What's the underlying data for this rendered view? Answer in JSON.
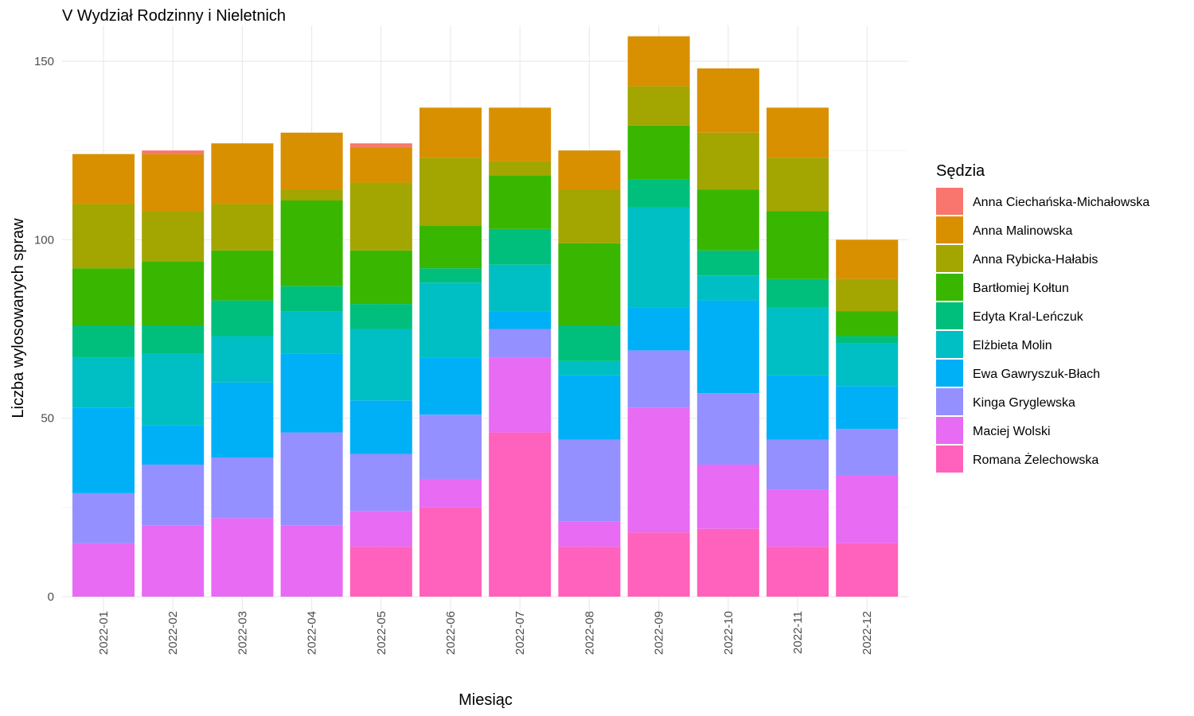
{
  "chart_data": {
    "type": "bar",
    "stacked": true,
    "title": "V Wydział Rodzinny i Nieletnich",
    "xlabel": "Miesiąc",
    "ylabel": "Liczba wylosowanych spraw",
    "ylim": [
      0,
      160
    ],
    "yticks": [
      0,
      50,
      100,
      150
    ],
    "grid": true,
    "legend_title": "Sędzia",
    "legend_position": "right",
    "categories": [
      "2022-01",
      "2022-02",
      "2022-03",
      "2022-04",
      "2022-05",
      "2022-06",
      "2022-07",
      "2022-08",
      "2022-09",
      "2022-10",
      "2022-11",
      "2022-12"
    ],
    "series": [
      {
        "name": "Anna Ciechańska-Michałowska",
        "color": "#F8766D",
        "values": [
          0,
          1,
          0,
          0,
          1,
          0,
          0,
          0,
          0,
          0,
          0,
          0
        ]
      },
      {
        "name": "Anna Malinowska",
        "color": "#D89000",
        "values": [
          14,
          16,
          17,
          16,
          10,
          14,
          15,
          11,
          14,
          18,
          14,
          11
        ]
      },
      {
        "name": "Anna Rybicka-Hałabis",
        "color": "#A3A500",
        "values": [
          18,
          14,
          13,
          3,
          19,
          19,
          4,
          15,
          11,
          16,
          15,
          9
        ]
      },
      {
        "name": "Bartłomiej Kołtun",
        "color": "#39B600",
        "values": [
          16,
          18,
          14,
          24,
          15,
          12,
          15,
          23,
          15,
          17,
          19,
          7
        ]
      },
      {
        "name": "Edyta Kral-Leńczuk",
        "color": "#00BF7D",
        "values": [
          9,
          8,
          10,
          7,
          7,
          4,
          10,
          10,
          8,
          7,
          8,
          2
        ]
      },
      {
        "name": "Elżbieta Molin",
        "color": "#00BFC4",
        "values": [
          14,
          20,
          13,
          12,
          20,
          21,
          13,
          4,
          28,
          7,
          19,
          12
        ]
      },
      {
        "name": "Ewa Gawryszuk-Błach",
        "color": "#00B0F6",
        "values": [
          24,
          11,
          21,
          22,
          15,
          16,
          5,
          18,
          12,
          26,
          18,
          12
        ]
      },
      {
        "name": "Kinga Gryglewska",
        "color": "#9590FF",
        "values": [
          14,
          17,
          17,
          26,
          16,
          18,
          8,
          23,
          16,
          20,
          14,
          13
        ]
      },
      {
        "name": "Maciej Wolski",
        "color": "#E76BF3",
        "values": [
          15,
          20,
          22,
          20,
          10,
          8,
          21,
          7,
          35,
          18,
          16,
          19
        ]
      },
      {
        "name": "Romana Żelechowska",
        "color": "#FF62BC",
        "values": [
          0,
          0,
          0,
          0,
          14,
          25,
          46,
          14,
          18,
          19,
          14,
          15
        ]
      }
    ]
  }
}
